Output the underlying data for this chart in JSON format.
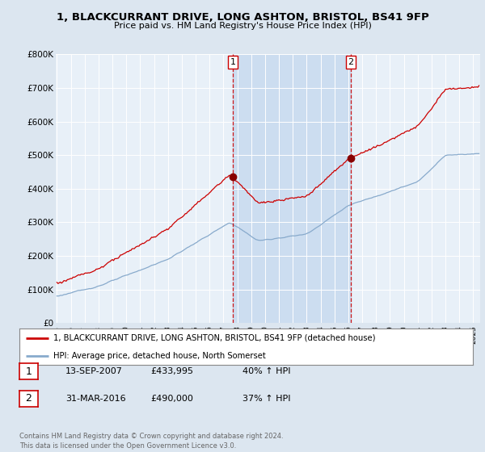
{
  "title": "1, BLACKCURRANT DRIVE, LONG ASHTON, BRISTOL, BS41 9FP",
  "subtitle": "Price paid vs. HM Land Registry's House Price Index (HPI)",
  "legend_line1": "1, BLACKCURRANT DRIVE, LONG ASHTON, BRISTOL, BS41 9FP (detached house)",
  "legend_line2": "HPI: Average price, detached house, North Somerset",
  "transaction1": {
    "num": "1",
    "date": "13-SEP-2007",
    "price": "433,995",
    "pct": "40%",
    "dir": "↑"
  },
  "transaction2": {
    "num": "2",
    "date": "31-MAR-2016",
    "price": "490,000",
    "pct": "37%",
    "dir": "↑"
  },
  "footer": "Contains HM Land Registry data © Crown copyright and database right 2024.\nThis data is licensed under the Open Government Licence v3.0.",
  "background_color": "#dce6f0",
  "plot_bg": "#e8f0f8",
  "red_color": "#cc0000",
  "blue_color": "#88aacc",
  "shade_color": "#ccddf0",
  "vline_color": "#cc0000",
  "ylim": [
    0,
    800000
  ],
  "yticks": [
    0,
    100000,
    200000,
    300000,
    400000,
    500000,
    600000,
    700000,
    800000
  ],
  "ytick_labels": [
    "£0",
    "£100K",
    "£200K",
    "£300K",
    "£400K",
    "£500K",
    "£600K",
    "£700K",
    "£800K"
  ]
}
